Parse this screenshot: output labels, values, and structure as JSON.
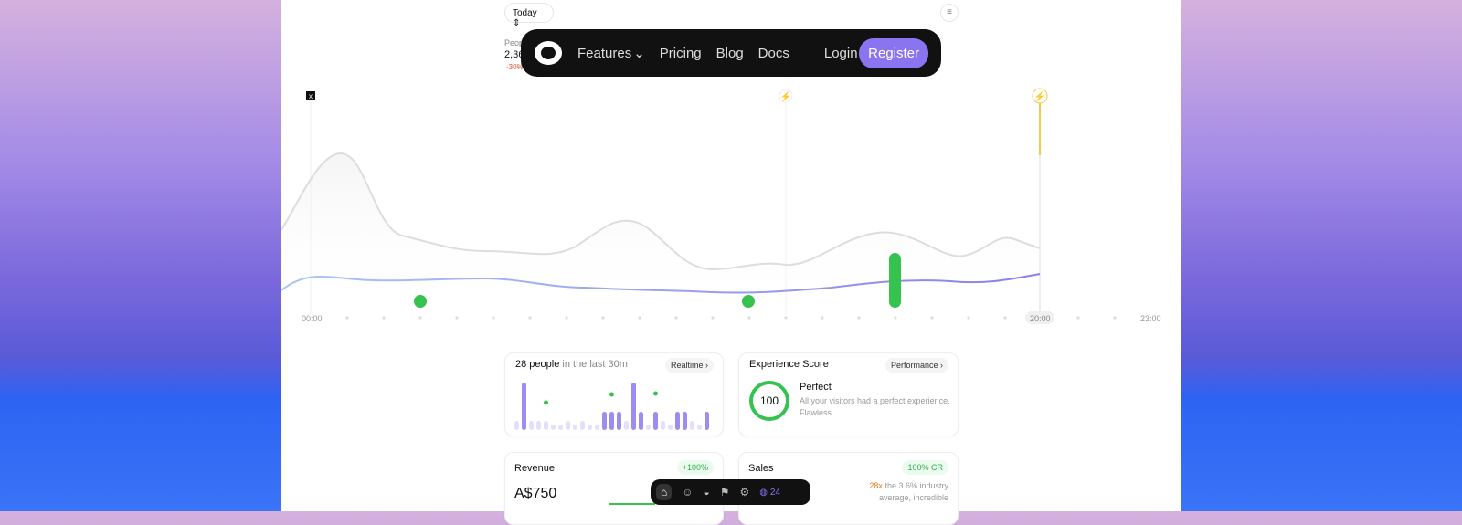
{
  "toolbar": {
    "range": "Today"
  },
  "summary": {
    "label": "People",
    "value": "2,36",
    "change": "-30%"
  },
  "nav": {
    "items": [
      "Features",
      "Pricing",
      "Blog",
      "Docs"
    ],
    "login": "Login",
    "register": "Register"
  },
  "timeline": {
    "labels": [
      "00:00",
      "20:00",
      "23:00"
    ]
  },
  "cards": {
    "live": {
      "count": "28 people",
      "suffix": "in the last 30m",
      "button": "Realtime"
    },
    "experience": {
      "title": "Experience Score",
      "button": "Performance",
      "score": "100",
      "verdict": "Perfect",
      "description": "All your visitors had a perfect experience. Flawless."
    },
    "revenue": {
      "title": "Revenue",
      "badge": "+100%",
      "amount": "A$750"
    },
    "sales": {
      "title": "Sales",
      "badge": "100% CR",
      "multiplier": "28x",
      "description": "the 3.6% industry average, incredible"
    }
  },
  "dock": {
    "badge": "24"
  }
}
